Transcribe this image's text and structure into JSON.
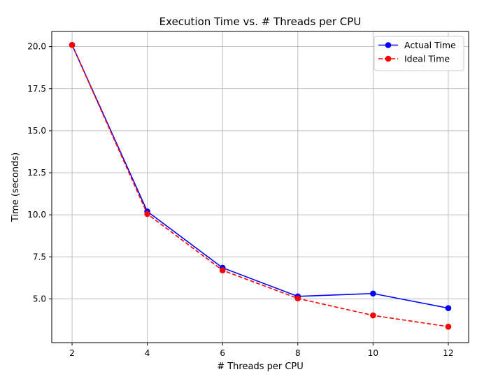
{
  "chart_data": {
    "type": "line",
    "title": "Execution Time vs. # Threads per CPU",
    "xlabel": "# Threads per CPU",
    "ylabel": "Time (seconds)",
    "x": [
      2,
      4,
      6,
      8,
      10,
      12
    ],
    "xticks": [
      "2",
      "4",
      "6",
      "8",
      "10",
      "12"
    ],
    "yticks": [
      "5.0",
      "7.5",
      "10.0",
      "12.5",
      "15.0",
      "17.5",
      "20.0"
    ],
    "xlim": [
      1.46,
      12.54
    ],
    "ylim": [
      2.4,
      20.9
    ],
    "grid": true,
    "legend_position": "upper right",
    "series": [
      {
        "name": "Actual Time",
        "values": [
          20.1,
          10.2,
          6.85,
          5.15,
          5.32,
          4.45
        ],
        "color": "#0000ff",
        "style": "solid",
        "marker": "circle"
      },
      {
        "name": "Ideal Time",
        "values": [
          20.1,
          10.05,
          6.7,
          5.03,
          4.02,
          3.35
        ],
        "color": "#ff0000",
        "style": "dashed",
        "marker": "circle"
      }
    ]
  }
}
